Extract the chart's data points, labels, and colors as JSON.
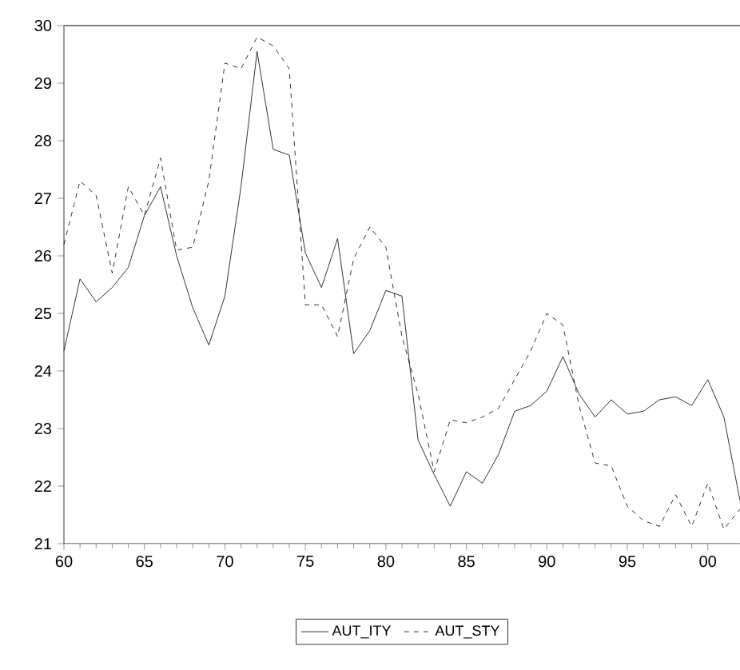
{
  "chart_data": {
    "type": "line",
    "x": [
      1960,
      1961,
      1962,
      1963,
      1964,
      1965,
      1966,
      1967,
      1968,
      1969,
      1970,
      1971,
      1972,
      1973,
      1974,
      1975,
      1976,
      1977,
      1978,
      1979,
      1980,
      1981,
      1982,
      1983,
      1984,
      1985,
      1986,
      1987,
      1988,
      1989,
      1990,
      1991,
      1992,
      1993,
      1994,
      1995,
      1996,
      1997,
      1998,
      1999,
      2000,
      2001,
      2002
    ],
    "series": [
      {
        "name": "AUT_ITY",
        "color": "#000000",
        "line_style": "solid",
        "values": [
          24.35,
          25.6,
          25.2,
          25.45,
          25.8,
          26.7,
          27.2,
          26.0,
          25.1,
          24.45,
          25.3,
          27.2,
          29.55,
          27.85,
          27.75,
          26.05,
          25.45,
          26.3,
          24.3,
          24.7,
          25.4,
          25.3,
          22.8,
          22.2,
          21.65,
          22.25,
          22.05,
          22.55,
          23.3,
          23.4,
          23.65,
          24.25,
          23.6,
          23.2,
          23.5,
          23.25,
          23.3,
          23.5,
          23.55,
          23.4,
          23.85,
          23.2,
          21.75
        ]
      },
      {
        "name": "AUT_STY",
        "color": "#000000",
        "line_style": "dashed",
        "values": [
          26.2,
          27.3,
          27.05,
          25.7,
          27.2,
          26.7,
          27.7,
          26.1,
          26.15,
          27.3,
          29.35,
          29.25,
          29.8,
          29.65,
          29.25,
          25.15,
          25.15,
          24.6,
          25.95,
          26.5,
          26.15,
          24.6,
          23.6,
          22.25,
          23.15,
          23.1,
          23.2,
          23.35,
          23.85,
          24.35,
          25.0,
          24.8,
          23.4,
          22.4,
          22.35,
          21.65,
          21.4,
          21.3,
          21.85,
          21.3,
          22.05,
          21.25,
          21.6
        ]
      }
    ],
    "xlim": [
      1960,
      2002
    ],
    "xticks": [
      {
        "value": 1960,
        "label": "60"
      },
      {
        "value": 1965,
        "label": "65"
      },
      {
        "value": 1970,
        "label": "70"
      },
      {
        "value": 1975,
        "label": "75"
      },
      {
        "value": 1980,
        "label": "80"
      },
      {
        "value": 1985,
        "label": "85"
      },
      {
        "value": 1990,
        "label": "90"
      },
      {
        "value": 1995,
        "label": "95"
      },
      {
        "value": 2000,
        "label": "00"
      }
    ],
    "ylim": [
      21,
      30
    ],
    "yticks": [
      21,
      22,
      23,
      24,
      25,
      26,
      27,
      28,
      29,
      30
    ],
    "grid": false,
    "legend": "bottom"
  }
}
